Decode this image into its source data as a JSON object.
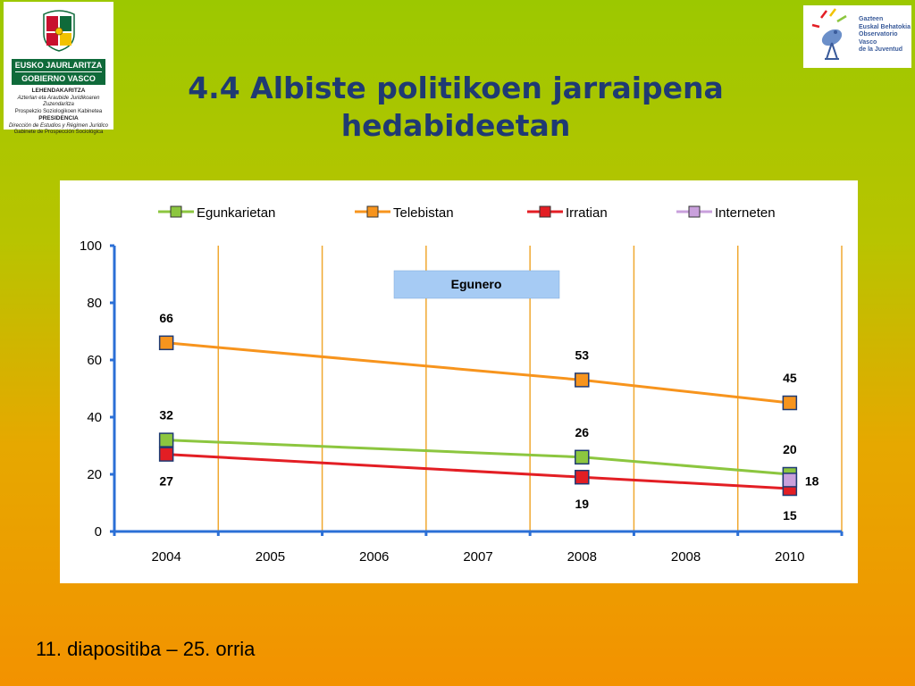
{
  "header": {
    "title": "4.4  Albiste politikoen jarraipena hedabideetan",
    "logo_left": {
      "line1": "EUSKO JAURLARITZA",
      "line2": "GOBIERNO VASCO",
      "lehendakaritza": "LEHENDAKARITZA",
      "sub1": "Azterlan eta Araubide Juridikoaren Zuzendaritza",
      "sub2": "Prospekzio Soziologikoen Kabinetea",
      "presidencia": "PRESIDENCIA",
      "sub3": "Dirección de Estudios y Régimen Jurídico",
      "sub4": "Gabinete de Prospección Sociológica"
    },
    "logo_right": {
      "line1": "Gazteen",
      "line2": "Euskal Behatokia",
      "line3": "Observatorio Vasco",
      "line4": "de la Juventud"
    }
  },
  "footer": {
    "text": "11. diapositiba – 25. orria"
  },
  "chart_data": {
    "type": "line",
    "categories": [
      "2004",
      "2005",
      "2006",
      "2007",
      "2008",
      "2008",
      "2010"
    ],
    "ylim": [
      0,
      100
    ],
    "yticks": [
      0,
      20,
      40,
      60,
      80,
      100
    ],
    "grid": "vertical",
    "legend": "top",
    "annotation": "Egunero",
    "series": [
      {
        "name": "Egunkarietan",
        "color": "#8cc63f",
        "values": [
          32,
          null,
          null,
          null,
          26,
          null,
          20
        ],
        "labels": [
          "32",
          "",
          "",
          "",
          "26",
          "",
          "20"
        ],
        "label_pos": [
          "above",
          "",
          "",
          "",
          "above",
          "",
          "above"
        ]
      },
      {
        "name": "Telebistan",
        "color": "#f7941d",
        "values": [
          66,
          null,
          null,
          null,
          53,
          null,
          45
        ],
        "labels": [
          "66",
          "",
          "",
          "",
          "53",
          "",
          "45"
        ],
        "label_pos": [
          "above",
          "",
          "",
          "",
          "above",
          "",
          "above"
        ]
      },
      {
        "name": "Irratian",
        "color": "#e31e24",
        "values": [
          27,
          null,
          null,
          null,
          19,
          null,
          15
        ],
        "labels": [
          "27",
          "",
          "",
          "",
          "19",
          "",
          "15"
        ],
        "label_pos": [
          "below",
          "",
          "",
          "",
          "below",
          "",
          "below"
        ]
      },
      {
        "name": "Interneten",
        "color": "#c9a0dc",
        "values": [
          null,
          null,
          null,
          null,
          null,
          null,
          18
        ],
        "labels": [
          "",
          "",
          "",
          "",
          "",
          "",
          "18"
        ],
        "label_pos": [
          "",
          "",
          "",
          "",
          "",
          "",
          "right"
        ]
      }
    ]
  }
}
